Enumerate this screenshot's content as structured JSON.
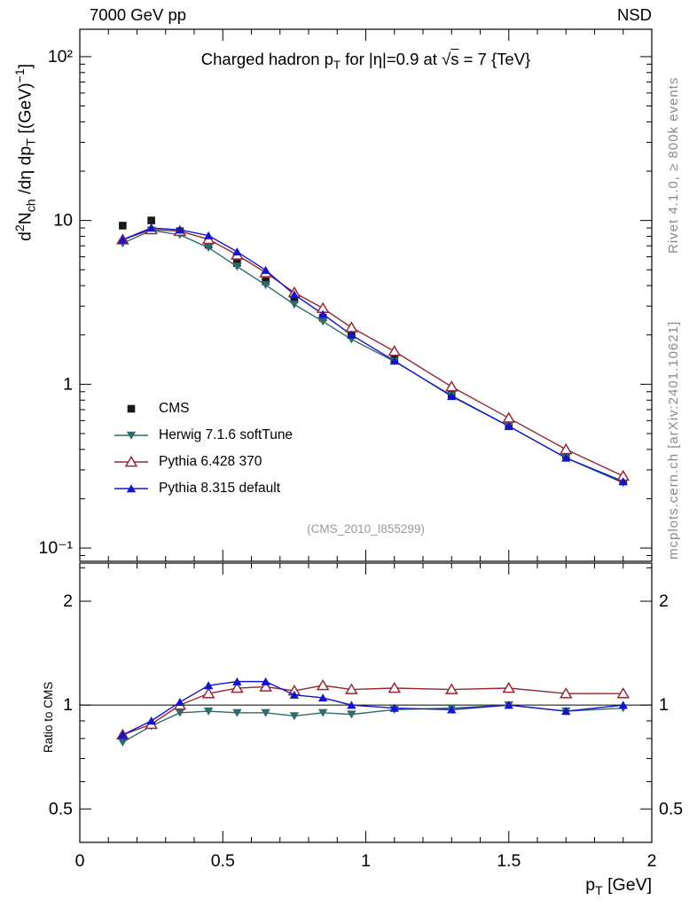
{
  "header": {
    "left": "7000 GeV pp",
    "right": "NSD"
  },
  "side_notes": {
    "rivet": "Rivet 4.1.0, ≥ 800k events",
    "mcplots": "mcplots.cern.ch [arXiv:2401.10621]"
  },
  "watermark": "(CMS_2010_I855299)",
  "labels": {
    "title": {
      "t1": "Charged hadron p",
      "sub1": "T",
      "t2": " for |η|=0.9 at ",
      "sqrt": "√",
      "sbar": "s",
      "t3": " = 7 {TeV}"
    },
    "ylabel": {
      "t1": "d",
      "sup1": "2",
      "t2": "N",
      "sub1": "ch",
      "t3": " /dη  dp",
      "sub2": "T",
      "t4": " [(GeV)",
      "sup2": "−1",
      "t5": "]"
    },
    "ratio_ylabel": "Ratio to CMS",
    "xlabel": {
      "t1": "p",
      "sub1": "T",
      "t2": " [GeV]"
    }
  },
  "chart_data": {
    "type": "line",
    "title": "Charged hadron pT for |η|=0.9 at √s = 7 TeV",
    "xlabel": "pT [GeV]",
    "ylabel": "d²N_ch/dη dpT [(GeV)⁻¹]",
    "ratio_label": "Ratio to CMS",
    "x": [
      0.15,
      0.25,
      0.35,
      0.45,
      0.55,
      0.65,
      0.75,
      0.85,
      0.95,
      1.1,
      1.3,
      1.5,
      1.7,
      1.9
    ],
    "series": [
      {
        "name": "CMS",
        "marker": "square-filled",
        "color": "#1a1a1a",
        "line": false,
        "values": [
          9.3,
          10.0,
          8.6,
          7.1,
          5.5,
          4.25,
          3.3,
          2.55,
          2.0,
          1.42,
          0.87,
          0.555,
          0.37,
          0.255
        ]
      },
      {
        "name": "Herwig 7.1.6 softTune",
        "marker": "triangle-down-filled",
        "color": "#2f6b6b",
        "values": [
          7.25,
          8.7,
          8.17,
          6.82,
          5.23,
          4.04,
          3.07,
          2.42,
          1.88,
          1.38,
          0.853,
          0.555,
          0.355,
          0.25
        ],
        "ratio": [
          0.78,
          0.87,
          0.95,
          0.96,
          0.95,
          0.95,
          0.93,
          0.95,
          0.94,
          0.97,
          0.98,
          1.0,
          0.96,
          0.98
        ]
      },
      {
        "name": "Pythia 6.428 370",
        "marker": "triangle-up-open",
        "color": "#932838",
        "values": [
          7.63,
          8.8,
          8.6,
          7.67,
          6.16,
          4.8,
          3.63,
          2.91,
          2.22,
          1.59,
          0.966,
          0.622,
          0.4,
          0.275
        ],
        "ratio": [
          0.82,
          0.88,
          1.0,
          1.08,
          1.12,
          1.13,
          1.1,
          1.14,
          1.11,
          1.12,
          1.11,
          1.12,
          1.08,
          1.08
        ]
      },
      {
        "name": "Pythia 8.315 default",
        "marker": "triangle-up-filled",
        "color": "#1414cc",
        "values": [
          7.63,
          9.0,
          8.77,
          8.09,
          6.44,
          4.97,
          3.53,
          2.68,
          2.0,
          1.39,
          0.844,
          0.555,
          0.355,
          0.255
        ],
        "ratio": [
          0.82,
          0.9,
          1.02,
          1.14,
          1.17,
          1.17,
          1.07,
          1.05,
          1.0,
          0.98,
          0.97,
          1.0,
          0.96,
          1.0
        ]
      }
    ],
    "main_axis": {
      "xlim": [
        0,
        2
      ],
      "yscale": "log",
      "ylim": [
        0.083,
        147
      ],
      "ytick_values": [
        100,
        10,
        1,
        0.1
      ],
      "ytick_labels": [
        "10²",
        "10",
        "1",
        "10⁻¹"
      ]
    },
    "ratio_axis": {
      "yscale": "log",
      "ylim": [
        0.4,
        2.58
      ],
      "ytick_values": [
        2,
        1,
        0.5
      ],
      "ytick_labels": [
        "2",
        "1",
        "0.5"
      ],
      "ytick_minor": [
        0.4,
        0.6,
        0.7,
        0.8,
        0.9,
        2.5
      ],
      "xtick_values": [
        0,
        0.5,
        1,
        1.5,
        2
      ],
      "xtick_labels": [
        "0",
        "0.5",
        "1",
        "1.5",
        "2"
      ],
      "ref_line": 1
    }
  }
}
